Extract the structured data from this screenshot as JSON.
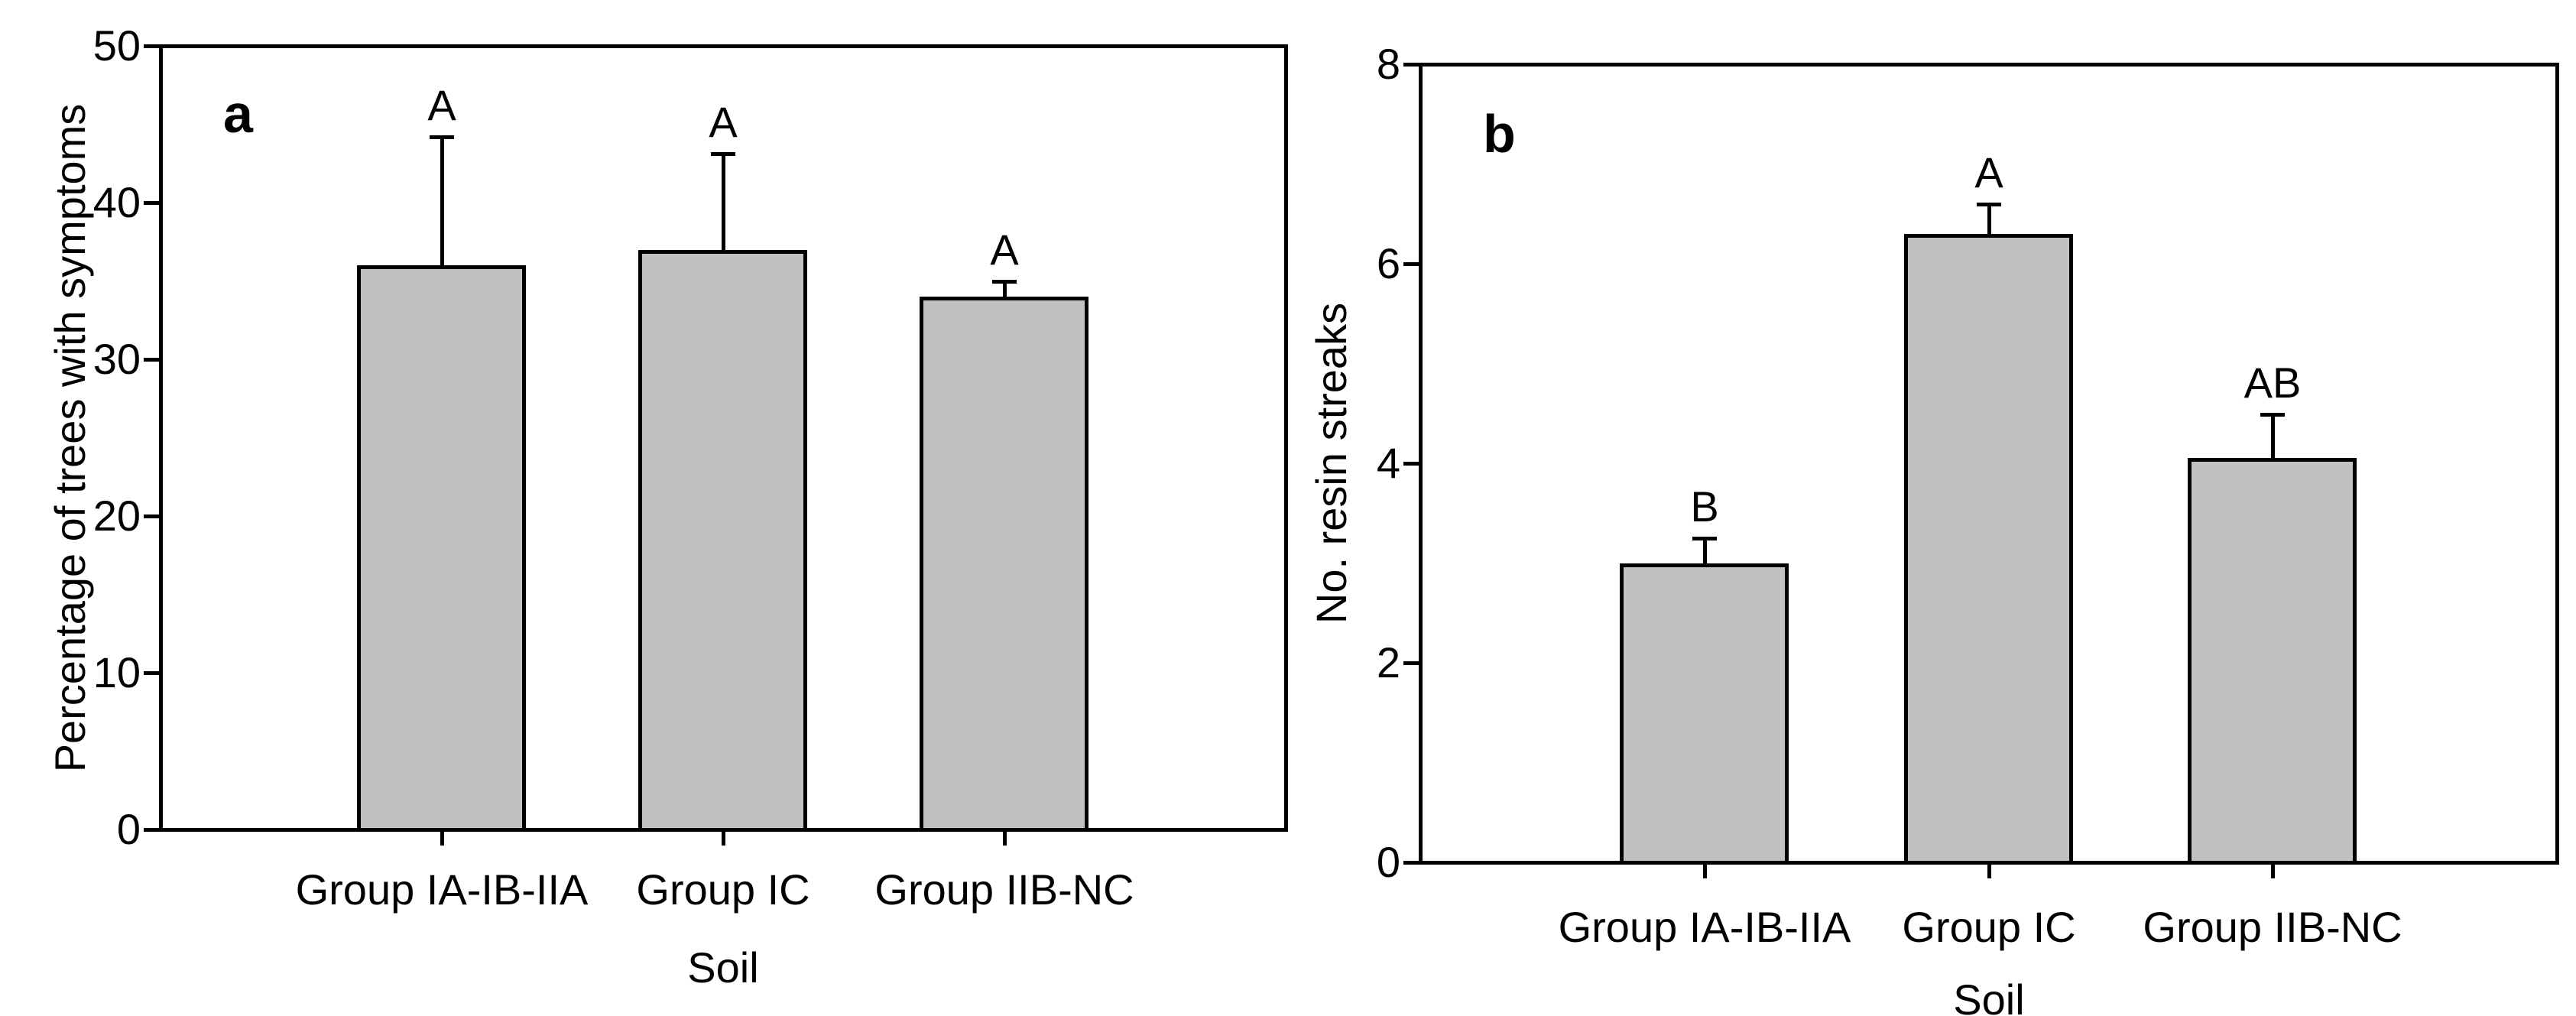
{
  "figure": {
    "background": "#ffffff",
    "bar_fill_color": "#C1C1C1",
    "line_color": "#000000"
  },
  "chart_data": [
    {
      "type": "bar",
      "panel_label": "a",
      "title": "",
      "xlabel": "Soil",
      "ylabel": "Percentage of trees with symptoms",
      "ylim": [
        0,
        50
      ],
      "yticks": [
        0,
        10,
        20,
        30,
        40,
        50
      ],
      "grid": false,
      "legend_position": "none",
      "categories": [
        "Group IA-IB-IIA",
        "Group IC",
        "Group IIB-NC"
      ],
      "values": [
        36,
        37,
        34
      ],
      "errors_plus": [
        8.2,
        6.1,
        1.0
      ],
      "significance_letters": [
        "A",
        "A",
        "A"
      ]
    },
    {
      "type": "bar",
      "panel_label": "b",
      "title": "",
      "xlabel": "Soil",
      "ylabel": "No. resin streaks",
      "ylim": [
        0,
        8
      ],
      "yticks": [
        0,
        2,
        4,
        6,
        8
      ],
      "grid": false,
      "legend_position": "none",
      "categories": [
        "Group IA-IB-IIA",
        "Group IC",
        "Group IIB-NC"
      ],
      "values": [
        3.0,
        6.3,
        4.05
      ],
      "errors_plus": [
        0.25,
        0.3,
        0.44
      ],
      "significance_letters": [
        "B",
        "A",
        "AB"
      ]
    }
  ]
}
